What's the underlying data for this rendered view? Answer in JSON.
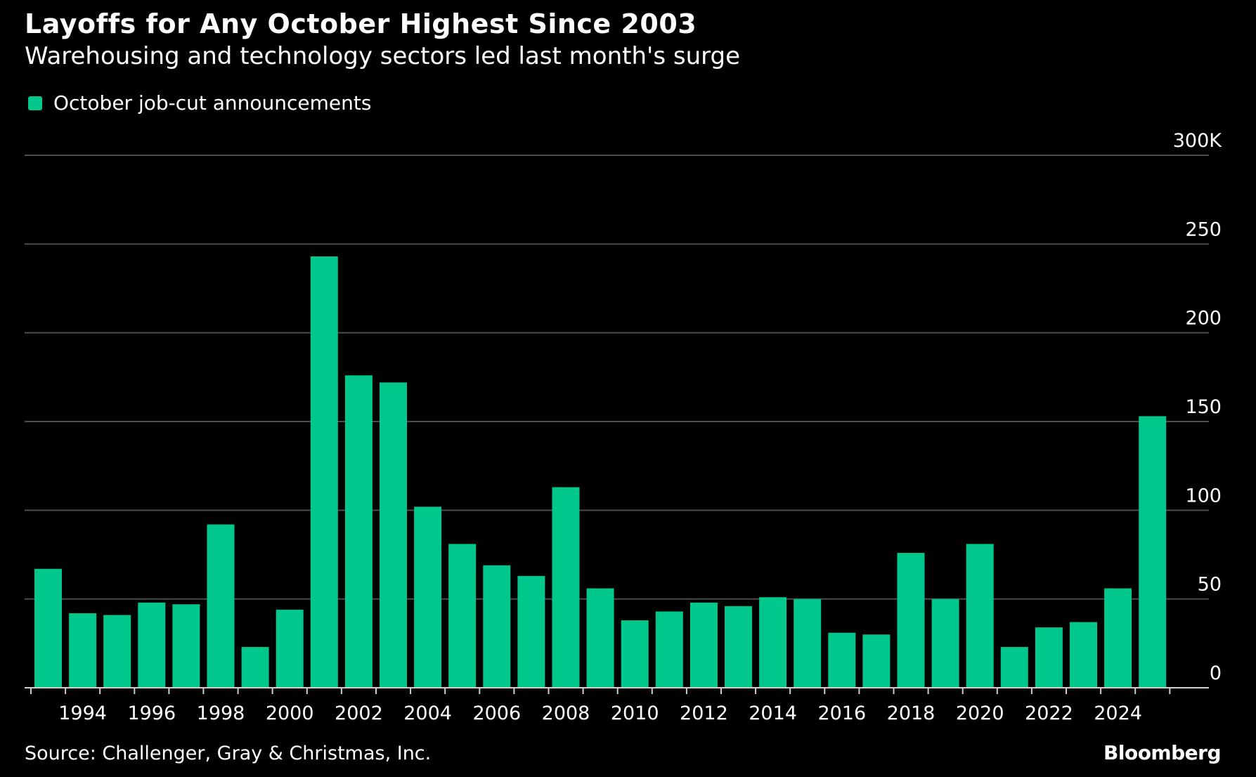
{
  "colors": {
    "background": "#000000",
    "bar": "#00c78c",
    "grid": "#4d4d4d",
    "text": "#ffffff"
  },
  "header": {
    "title": "Layoffs for Any October Highest Since 2003",
    "subtitle": "Warehousing and technology sectors led last month's surge"
  },
  "footer": {
    "source": "Source: Challenger, Gray & Christmas, Inc.",
    "brand": "Bloomberg"
  },
  "chart_data": {
    "type": "bar",
    "title": "Layoffs for Any October Highest Since 2003",
    "subtitle": "Warehousing and technology sectors led last month's surge",
    "legend": [
      "October job-cut announcements"
    ],
    "legend_position": "top-left",
    "xlabel": "",
    "ylabel": "",
    "ylim": [
      0,
      300
    ],
    "y_unit_suffix": "K",
    "y_axis_side": "right",
    "grid": true,
    "y_ticks": [
      {
        "value": 0,
        "label": "0"
      },
      {
        "value": 50,
        "label": "50"
      },
      {
        "value": 100,
        "label": "100"
      },
      {
        "value": 150,
        "label": "150"
      },
      {
        "value": 200,
        "label": "200"
      },
      {
        "value": 250,
        "label": "250"
      },
      {
        "value": 300,
        "label": "300K"
      }
    ],
    "x_tick_labels": [
      "1994",
      "1996",
      "1998",
      "2000",
      "2002",
      "2004",
      "2006",
      "2008",
      "2010",
      "2012",
      "2014",
      "2016",
      "2018",
      "2020",
      "2022",
      "2024"
    ],
    "categories": [
      "1993",
      "1994",
      "1995",
      "1996",
      "1997",
      "1998",
      "1999",
      "2000",
      "2001",
      "2002",
      "2003",
      "2004",
      "2005",
      "2006",
      "2007",
      "2008",
      "2009",
      "2010",
      "2011",
      "2012",
      "2013",
      "2014",
      "2015",
      "2016",
      "2017",
      "2018",
      "2019",
      "2020",
      "2021",
      "2022",
      "2023",
      "2024",
      "2025"
    ],
    "series": [
      {
        "name": "October job-cut announcements",
        "values": [
          67,
          42,
          41,
          48,
          47,
          92,
          23,
          44,
          243,
          176,
          172,
          102,
          81,
          69,
          63,
          113,
          56,
          38,
          43,
          48,
          46,
          51,
          50,
          31,
          30,
          76,
          50,
          81,
          23,
          34,
          37,
          56,
          153
        ]
      }
    ]
  }
}
